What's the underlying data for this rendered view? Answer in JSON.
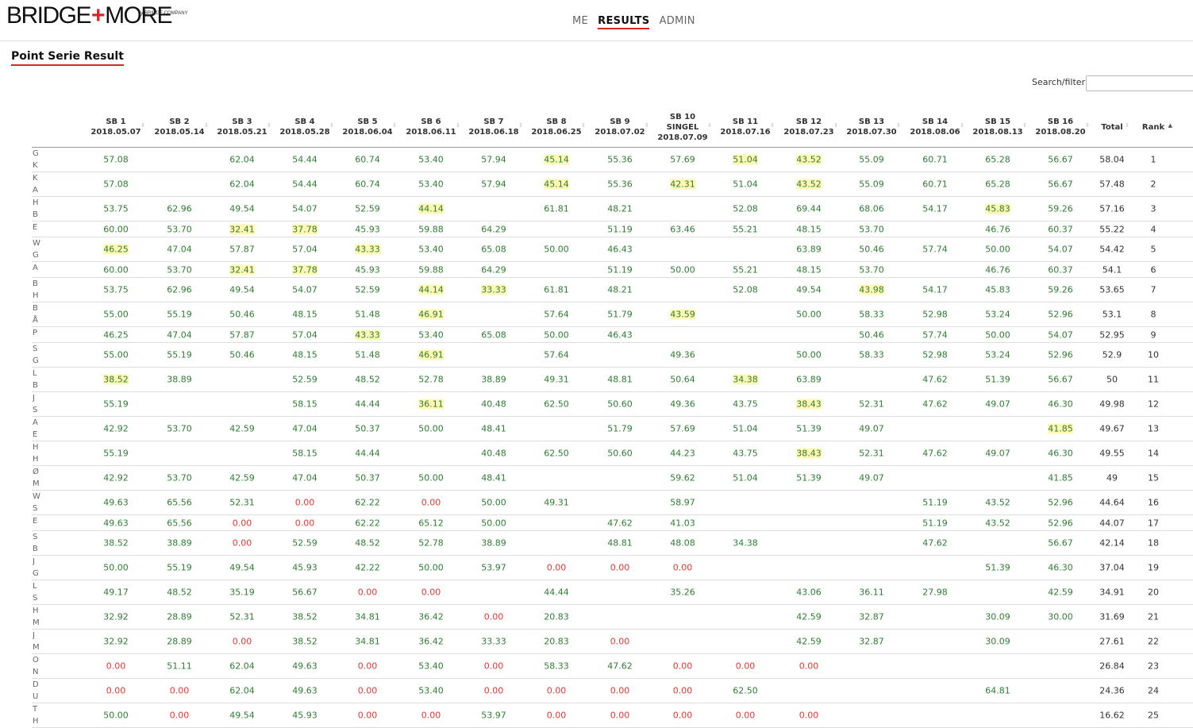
{
  "brand": {
    "word1": "BRIDGE",
    "plus": "+",
    "word2": "MORE",
    "sub": "by BRIDGE COMPANY"
  },
  "nav": [
    {
      "label": "ME",
      "active": false
    },
    {
      "label": "RESULTS",
      "active": true
    },
    {
      "label": "ADMIN",
      "active": false
    }
  ],
  "page_title": "Point Serie Result",
  "search": {
    "label": "Search/filter:",
    "value": "",
    "placeholder": ""
  },
  "columns": [
    {
      "l1": "SB 1",
      "l3": "2018.05.07"
    },
    {
      "l1": "SB 2",
      "l3": "2018.05.14"
    },
    {
      "l1": "SB 3",
      "l3": "2018.05.21"
    },
    {
      "l1": "SB 4",
      "l3": "2018.05.28"
    },
    {
      "l1": "SB 5",
      "l3": "2018.06.04"
    },
    {
      "l1": "SB 6",
      "l3": "2018.06.11"
    },
    {
      "l1": "SB 7",
      "l3": "2018.06.18"
    },
    {
      "l1": "SB 8",
      "l3": "2018.06.25"
    },
    {
      "l1": "SB 9",
      "l3": "2018.07.02"
    },
    {
      "l1": "SB 10",
      "l2": "SINGEL",
      "l3": "2018.07.09"
    },
    {
      "l1": "SB 11",
      "l3": "2018.07.16"
    },
    {
      "l1": "SB 12",
      "l3": "2018.07.23"
    },
    {
      "l1": "SB 13",
      "l3": "2018.07.30"
    },
    {
      "l1": "SB 14",
      "l3": "2018.08.06"
    },
    {
      "l1": "SB 15",
      "l3": "2018.08.13"
    },
    {
      "l1": "SB 16",
      "l3": "2018.08.20"
    },
    {
      "l1": "Total"
    },
    {
      "l1": "Rank"
    }
  ],
  "sorted_column": "Rank",
  "rows": [
    {
      "names": [
        "G",
        "K"
      ],
      "cells": [
        "57.08",
        "",
        "62.04",
        "54.44",
        "60.74",
        "53.40",
        "57.94",
        "*45.14",
        "55.36",
        "57.69",
        "*51.04",
        "*43.52",
        "55.09",
        "60.71",
        "65.28",
        "56.67"
      ],
      "total": "58.04",
      "rank": "1"
    },
    {
      "names": [
        "K",
        "A"
      ],
      "cells": [
        "57.08",
        "",
        "62.04",
        "54.44",
        "60.74",
        "53.40",
        "57.94",
        "*45.14",
        "55.36",
        "*42.31",
        "51.04",
        "*43.52",
        "55.09",
        "60.71",
        "65.28",
        "56.67"
      ],
      "total": "57.48",
      "rank": "2"
    },
    {
      "names": [
        "H",
        "B"
      ],
      "cells": [
        "53.75",
        "62.96",
        "49.54",
        "54.07",
        "52.59",
        "*44.14",
        "",
        "61.81",
        "48.21",
        "",
        "52.08",
        "69.44",
        "68.06",
        "54.17",
        "*45.83",
        "59.26"
      ],
      "total": "57.16",
      "rank": "3"
    },
    {
      "names": [
        "E"
      ],
      "cells": [
        "60.00",
        "53.70",
        "*32.41",
        "*37.78",
        "45.93",
        "59.88",
        "64.29",
        "",
        "51.19",
        "63.46",
        "55.21",
        "48.15",
        "53.70",
        "",
        "46.76",
        "60.37"
      ],
      "total": "55.22",
      "rank": "4"
    },
    {
      "names": [
        "W",
        "G"
      ],
      "cells": [
        "*46.25",
        "47.04",
        "57.87",
        "57.04",
        "*43.33",
        "53.40",
        "65.08",
        "50.00",
        "46.43",
        "",
        "",
        "63.89",
        "50.46",
        "57.74",
        "50.00",
        "54.07"
      ],
      "total": "54.42",
      "rank": "5"
    },
    {
      "names": [
        "A"
      ],
      "cells": [
        "60.00",
        "53.70",
        "*32.41",
        "*37.78",
        "45.93",
        "59.88",
        "64.29",
        "",
        "51.19",
        "50.00",
        "55.21",
        "48.15",
        "53.70",
        "",
        "46.76",
        "60.37"
      ],
      "total": "54.1",
      "rank": "6"
    },
    {
      "names": [
        "B",
        "H"
      ],
      "cells": [
        "53.75",
        "62.96",
        "49.54",
        "54.07",
        "52.59",
        "*44.14",
        "*33.33",
        "61.81",
        "48.21",
        "",
        "52.08",
        "49.54",
        "*43.98",
        "54.17",
        "45.83",
        "59.26"
      ],
      "total": "53.65",
      "rank": "7"
    },
    {
      "names": [
        "B",
        "Å"
      ],
      "cells": [
        "55.00",
        "55.19",
        "50.46",
        "48.15",
        "51.48",
        "*46.91",
        "",
        "57.64",
        "51.79",
        "*43.59",
        "",
        "50.00",
        "58.33",
        "52.98",
        "53.24",
        "52.96"
      ],
      "total": "53.1",
      "rank": "8"
    },
    {
      "names": [
        "P"
      ],
      "cells": [
        "46.25",
        "47.04",
        "57.87",
        "57.04",
        "*43.33",
        "53.40",
        "65.08",
        "50.00",
        "46.43",
        "",
        "",
        "",
        "50.46",
        "57.74",
        "50.00",
        "54.07"
      ],
      "total": "52.95",
      "rank": "9"
    },
    {
      "names": [
        "S",
        "G"
      ],
      "cells": [
        "55.00",
        "55.19",
        "50.46",
        "48.15",
        "51.48",
        "*46.91",
        "",
        "57.64",
        "",
        "49.36",
        "",
        "50.00",
        "58.33",
        "52.98",
        "53.24",
        "52.96"
      ],
      "total": "52.9",
      "rank": "10"
    },
    {
      "names": [
        "L",
        "B"
      ],
      "cells": [
        "*38.52",
        "38.89",
        "",
        "52.59",
        "48.52",
        "52.78",
        "38.89",
        "49.31",
        "48.81",
        "50.64",
        "*34.38",
        "63.89",
        "",
        "47.62",
        "51.39",
        "56.67"
      ],
      "total": "50",
      "rank": "11"
    },
    {
      "names": [
        "J",
        "S"
      ],
      "cells": [
        "55.19",
        "",
        "",
        "58.15",
        "44.44",
        "*36.11",
        "40.48",
        "62.50",
        "50.60",
        "49.36",
        "43.75",
        "*38.43",
        "52.31",
        "47.62",
        "49.07",
        "46.30"
      ],
      "total": "49.98",
      "rank": "12"
    },
    {
      "names": [
        "A",
        "E"
      ],
      "cells": [
        "42.92",
        "53.70",
        "42.59",
        "47.04",
        "50.37",
        "50.00",
        "48.41",
        "",
        "51.79",
        "57.69",
        "51.04",
        "51.39",
        "49.07",
        "",
        "",
        "*41.85"
      ],
      "total": "49.67",
      "rank": "13"
    },
    {
      "names": [
        "H",
        "H"
      ],
      "cells": [
        "55.19",
        "",
        "",
        "58.15",
        "44.44",
        "",
        "40.48",
        "62.50",
        "50.60",
        "44.23",
        "43.75",
        "*38.43",
        "52.31",
        "47.62",
        "49.07",
        "46.30"
      ],
      "total": "49.55",
      "rank": "14"
    },
    {
      "names": [
        "Ø",
        "M"
      ],
      "cells": [
        "42.92",
        "53.70",
        "42.59",
        "47.04",
        "50.37",
        "50.00",
        "48.41",
        "",
        "",
        "59.62",
        "51.04",
        "51.39",
        "49.07",
        "",
        "",
        "41.85"
      ],
      "total": "49",
      "rank": "15"
    },
    {
      "names": [
        "W",
        "S"
      ],
      "cells": [
        "49.63",
        "65.56",
        "52.31",
        "0.00",
        "62.22",
        "0.00",
        "50.00",
        "49.31",
        "",
        "58.97",
        "",
        "",
        "",
        "51.19",
        "43.52",
        "52.96"
      ],
      "total": "44.64",
      "rank": "16"
    },
    {
      "names": [
        "E"
      ],
      "cells": [
        "49.63",
        "65.56",
        "0.00",
        "0.00",
        "62.22",
        "65.12",
        "50.00",
        "",
        "47.62",
        "41.03",
        "",
        "",
        "",
        "51.19",
        "43.52",
        "52.96"
      ],
      "total": "44.07",
      "rank": "17"
    },
    {
      "names": [
        "S",
        "B"
      ],
      "cells": [
        "38.52",
        "38.89",
        "0.00",
        "52.59",
        "48.52",
        "52.78",
        "38.89",
        "",
        "48.81",
        "48.08",
        "34.38",
        "",
        "",
        "47.62",
        "",
        "56.67"
      ],
      "total": "42.14",
      "rank": "18"
    },
    {
      "names": [
        "J",
        "G"
      ],
      "cells": [
        "50.00",
        "55.19",
        "49.54",
        "45.93",
        "42.22",
        "50.00",
        "53.97",
        "0.00",
        "0.00",
        "0.00",
        "",
        "",
        "",
        "",
        "51.39",
        "46.30"
      ],
      "total": "37.04",
      "rank": "19"
    },
    {
      "names": [
        "L",
        "S"
      ],
      "cells": [
        "49.17",
        "48.52",
        "35.19",
        "56.67",
        "0.00",
        "0.00",
        "",
        "44.44",
        "",
        "35.26",
        "",
        "43.06",
        "36.11",
        "27.98",
        "",
        "42.59"
      ],
      "total": "34.91",
      "rank": "20"
    },
    {
      "names": [
        "H",
        "M"
      ],
      "cells": [
        "32.92",
        "28.89",
        "52.31",
        "38.52",
        "34.81",
        "36.42",
        "0.00",
        "20.83",
        "",
        "",
        "",
        "42.59",
        "32.87",
        "",
        "30.09",
        "30.00"
      ],
      "total": "31.69",
      "rank": "21"
    },
    {
      "names": [
        "J",
        "M"
      ],
      "cells": [
        "32.92",
        "28.89",
        "0.00",
        "38.52",
        "34.81",
        "36.42",
        "33.33",
        "20.83",
        "0.00",
        "",
        "",
        "42.59",
        "32.87",
        "",
        "30.09",
        ""
      ],
      "total": "27.61",
      "rank": "22"
    },
    {
      "names": [
        "O",
        "N"
      ],
      "cells": [
        "0.00",
        "51.11",
        "62.04",
        "49.63",
        "0.00",
        "53.40",
        "0.00",
        "58.33",
        "47.62",
        "0.00",
        "0.00",
        "0.00",
        "",
        "",
        "",
        ""
      ],
      "total": "26.84",
      "rank": "23"
    },
    {
      "names": [
        "D",
        "U"
      ],
      "cells": [
        "0.00",
        "0.00",
        "62.04",
        "49.63",
        "0.00",
        "53.40",
        "0.00",
        "0.00",
        "0.00",
        "0.00",
        "62.50",
        "",
        "",
        "",
        "64.81",
        ""
      ],
      "total": "24.36",
      "rank": "24"
    },
    {
      "names": [
        "T",
        "H"
      ],
      "cells": [
        "50.00",
        "0.00",
        "49.54",
        "45.93",
        "0.00",
        "0.00",
        "53.97",
        "0.00",
        "0.00",
        "0.00",
        "0.00",
        "0.00",
        "",
        "",
        "",
        ""
      ],
      "total": "16.62",
      "rank": "25"
    }
  ]
}
